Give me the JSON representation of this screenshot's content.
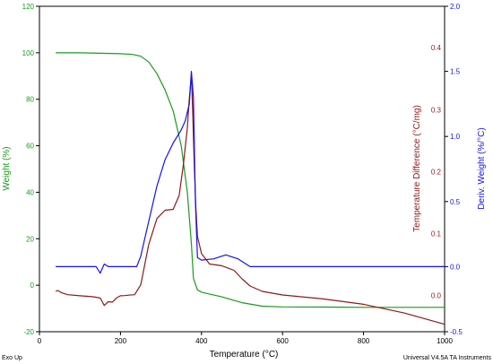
{
  "colors": {
    "weight": "#1b9a1b",
    "temp_diff": "#8b1a1a",
    "deriv": "#1414e6",
    "axis": "#000000"
  },
  "footer": {
    "left": "Exo Up",
    "right": "Universal V4.5A TA Instruments"
  },
  "chart_data": {
    "type": "line",
    "xlabel": "Temperature (°C)",
    "x_ticks": [
      0,
      200,
      400,
      600,
      800,
      1000
    ],
    "xlim": [
      0,
      1000
    ],
    "axes": {
      "weight": {
        "label": "Weight (%)",
        "ylim": [
          -20,
          120
        ],
        "ticks": [
          -20,
          0,
          20,
          40,
          60,
          80,
          100,
          120
        ]
      },
      "temp_diff": {
        "label": "Temperature Difference (°C/mg)",
        "ylim": [
          -0.0583,
          0.4667
        ],
        "ticks": [
          0.0,
          0.1,
          0.2,
          0.3,
          0.4
        ]
      },
      "deriv": {
        "label": "Deriv. Weight (%/°C)",
        "ylim": [
          -0.5,
          2.0
        ],
        "ticks": [
          -0.5,
          0.0,
          0.5,
          1.0,
          1.5,
          2.0
        ]
      }
    },
    "series": [
      {
        "axis": "weight",
        "x": [
          40,
          100,
          150,
          200,
          230,
          250,
          270,
          290,
          310,
          330,
          350,
          365,
          375,
          380,
          390,
          400,
          450,
          500,
          550,
          600,
          700,
          800,
          900,
          1000
        ],
        "values": [
          100,
          100,
          99.8,
          99.6,
          99.3,
          98.5,
          96,
          91,
          84,
          75,
          60,
          40,
          18,
          3,
          -2,
          -3,
          -5,
          -7.5,
          -9,
          -9.3,
          -9.4,
          -9.5,
          -9.5,
          -9.5
        ]
      },
      {
        "axis": "temp_diff",
        "x": [
          40,
          45,
          55,
          70,
          100,
          130,
          150,
          160,
          170,
          180,
          190,
          200,
          210,
          220,
          235,
          250,
          270,
          290,
          310,
          330,
          345,
          355,
          365,
          370,
          375,
          378,
          382,
          386,
          390,
          400,
          420,
          450,
          480,
          500,
          520,
          550,
          600,
          700,
          800,
          900,
          1000
        ],
        "values": [
          0.0068,
          0.0083,
          0.0044,
          0.0015,
          -0.0003,
          -0.0018,
          -0.0039,
          -0.0159,
          -0.0099,
          -0.0106,
          -0.0039,
          -0.0003,
          0.0,
          0.0007,
          0.0015,
          0.0174,
          0.0828,
          0.1244,
          0.1377,
          0.1391,
          0.1617,
          0.2103,
          0.2706,
          0.3178,
          0.3566,
          0.3,
          0.2118,
          0.142,
          0.0954,
          0.0676,
          0.0509,
          0.0482,
          0.0407,
          0.0271,
          0.0154,
          0.0068,
          0.001,
          -0.0054,
          -0.014,
          -0.0281,
          -0.0463
        ]
      },
      {
        "axis": "deriv",
        "x": [
          40,
          100,
          140,
          150,
          160,
          170,
          180,
          200,
          240,
          250,
          270,
          290,
          310,
          330,
          350,
          360,
          370,
          375,
          380,
          385,
          390,
          400,
          430,
          460,
          490,
          520,
          600,
          700,
          800,
          900,
          1000
        ],
        "values": [
          0.0,
          0.0,
          0.0,
          -0.05,
          0.02,
          0.0,
          0.0,
          0.0,
          0.0,
          0.08,
          0.35,
          0.62,
          0.82,
          0.95,
          1.05,
          1.12,
          1.25,
          1.5,
          1.3,
          0.5,
          0.07,
          0.05,
          0.06,
          0.09,
          0.06,
          0.0,
          0.0,
          0.0,
          0.0,
          0.0,
          0.0
        ]
      }
    ],
    "grid": false,
    "legend": "none"
  }
}
